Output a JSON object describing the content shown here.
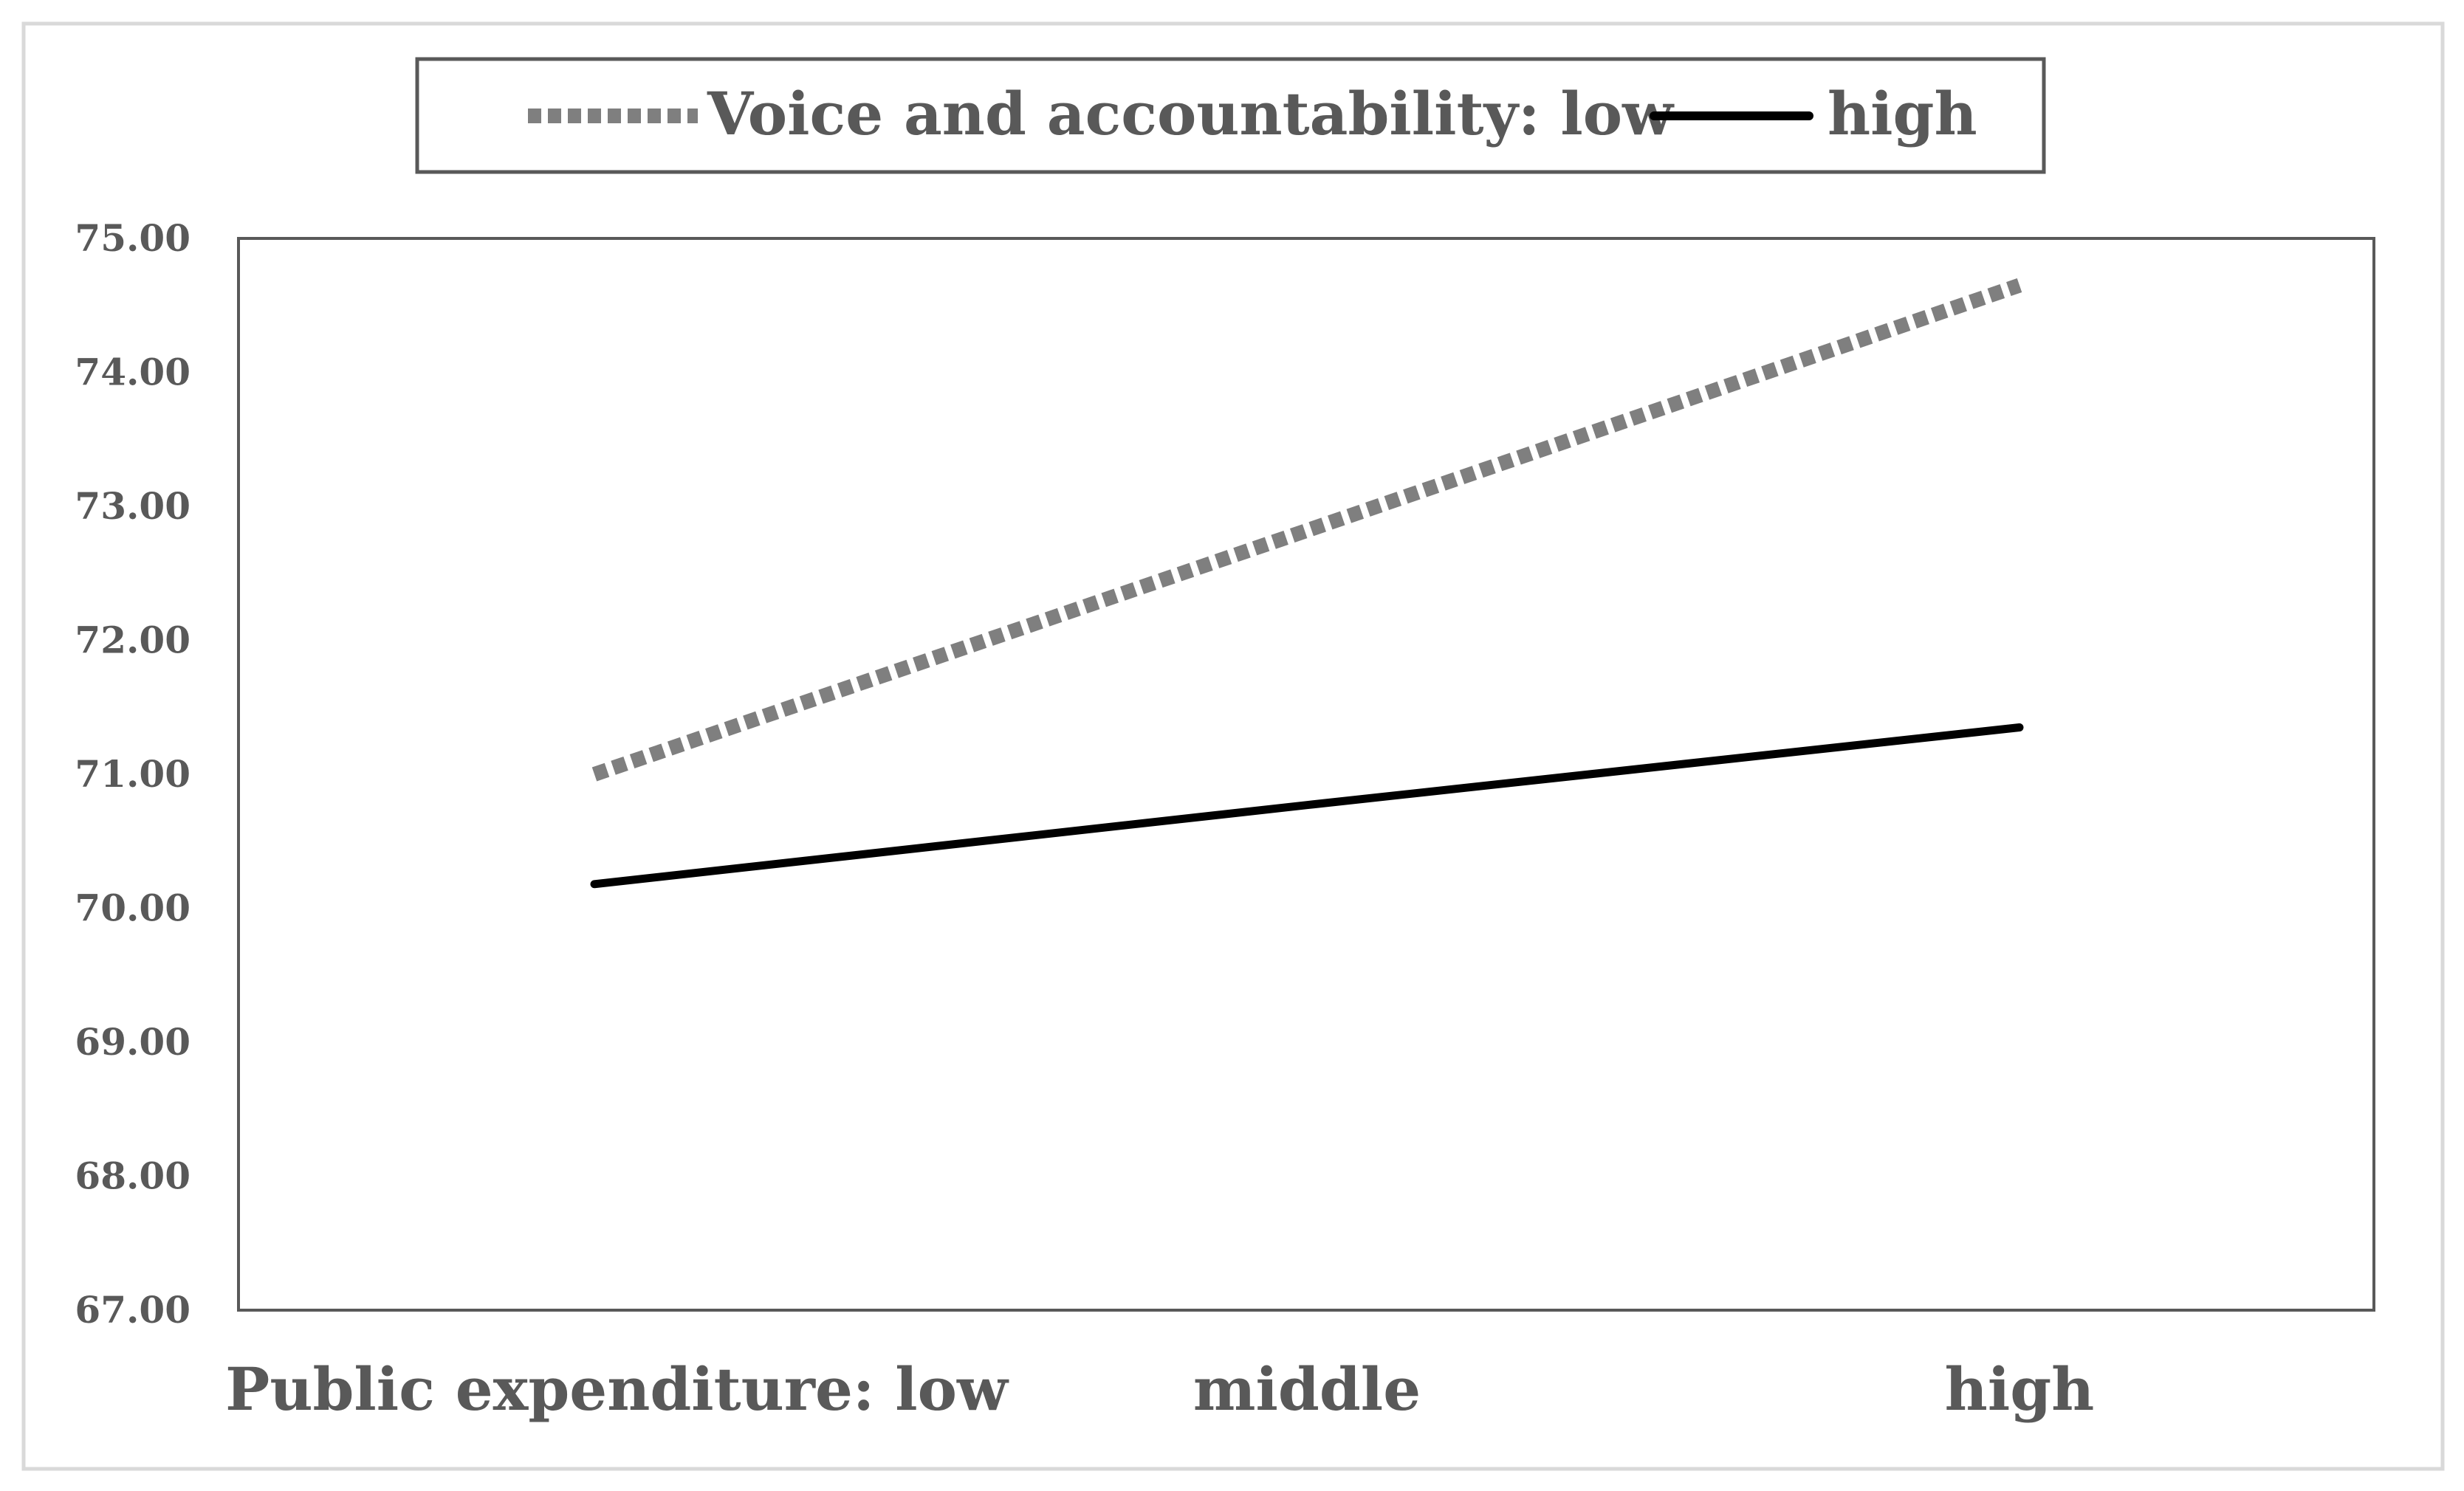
{
  "chart_data": {
    "type": "line",
    "title": "",
    "xlabel": "",
    "ylabel": "",
    "categories": [
      "Public expenditure: low",
      "middle",
      "high"
    ],
    "series": [
      {
        "name": "Voice and accountability: low",
        "values": [
          71.0,
          72.82,
          74.65
        ],
        "color": "#7f7f7f",
        "style": "dotted"
      },
      {
        "name": "high",
        "values": [
          70.18,
          70.77,
          71.35
        ],
        "color": "#000000",
        "style": "solid"
      }
    ],
    "ylim": [
      67.0,
      75.0
    ],
    "yticks": [
      "67.00",
      "68.00",
      "69.00",
      "70.00",
      "71.00",
      "72.00",
      "73.00",
      "74.00",
      "75.00"
    ],
    "grid": false,
    "legend_position": "top"
  }
}
